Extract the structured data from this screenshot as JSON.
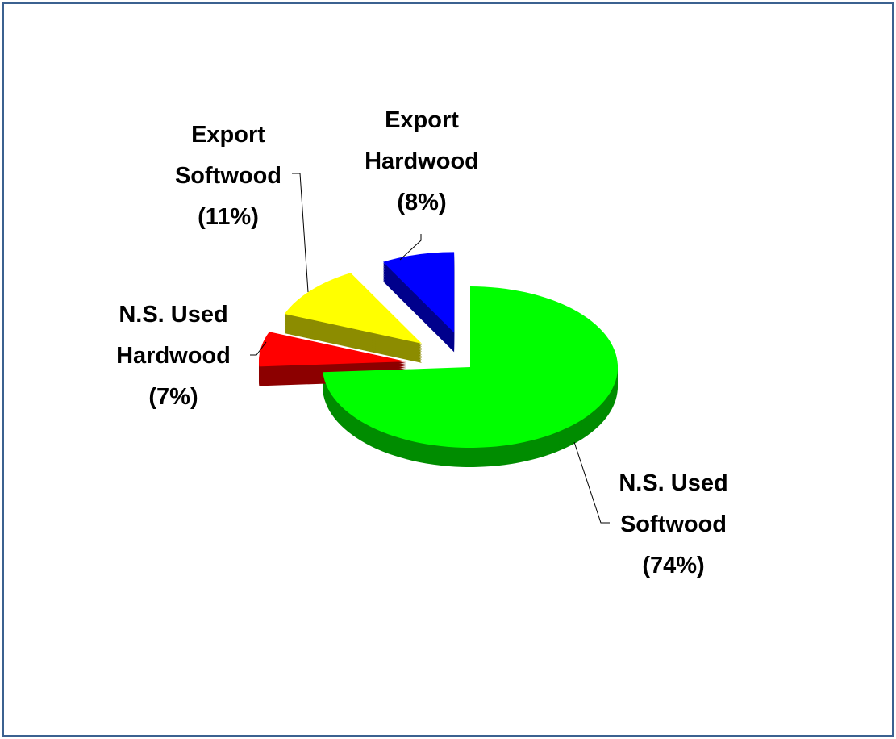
{
  "chart_data": {
    "type": "pie",
    "categories": [
      "N.S. Used Softwood",
      "N.S. Used Hardwood",
      "Export Softwood",
      "Export Hardwood"
    ],
    "values": [
      74,
      7,
      11,
      8
    ],
    "value_labels": [
      "(74%)",
      "(7%)",
      "(11%)",
      "(8%)"
    ],
    "colors": [
      "#00ff00",
      "#ff0000",
      "#ffff00",
      "#0000ff"
    ]
  }
}
